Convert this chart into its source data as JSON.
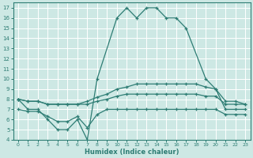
{
  "xlabel": "Humidex (Indice chaleur)",
  "bg_color": "#cde8e4",
  "grid_color": "#ffffff",
  "line_color": "#2e7d74",
  "xlim": [
    -0.5,
    23.5
  ],
  "ylim": [
    4,
    17.5
  ],
  "xticks": [
    0,
    1,
    2,
    3,
    4,
    5,
    6,
    7,
    8,
    9,
    10,
    11,
    12,
    13,
    14,
    15,
    16,
    17,
    18,
    19,
    20,
    21,
    22,
    23
  ],
  "yticks": [
    4,
    5,
    6,
    7,
    8,
    9,
    10,
    11,
    12,
    13,
    14,
    15,
    16,
    17
  ],
  "line1_x": [
    0,
    1,
    2,
    3,
    4,
    5,
    6,
    7,
    8,
    10,
    11,
    12,
    13,
    14,
    15,
    16,
    17,
    19,
    20,
    21,
    22,
    23
  ],
  "line1_y": [
    8,
    7,
    7,
    6,
    5,
    5,
    6,
    4,
    10,
    16,
    17,
    16,
    17,
    17,
    16,
    16,
    15,
    10,
    9,
    7,
    7,
    7
  ],
  "line2_x": [
    0,
    1,
    2,
    3,
    4,
    5,
    6,
    7,
    8,
    9,
    10,
    11,
    12,
    13,
    14,
    15,
    16,
    17,
    18,
    19,
    20,
    21,
    22,
    23
  ],
  "line2_y": [
    8,
    7.8,
    7.8,
    7.5,
    7.5,
    7.5,
    7.5,
    7.8,
    8.2,
    8.5,
    9.0,
    9.2,
    9.5,
    9.5,
    9.5,
    9.5,
    9.5,
    9.5,
    9.5,
    9.2,
    9.0,
    7.8,
    7.8,
    7.5
  ],
  "line3_x": [
    0,
    1,
    2,
    3,
    4,
    5,
    6,
    7,
    8,
    9,
    10,
    11,
    12,
    13,
    14,
    15,
    16,
    17,
    18,
    19,
    20,
    21,
    22,
    23
  ],
  "line3_y": [
    8,
    7.8,
    7.8,
    7.5,
    7.5,
    7.5,
    7.5,
    7.5,
    7.8,
    8.0,
    8.3,
    8.5,
    8.5,
    8.5,
    8.5,
    8.5,
    8.5,
    8.5,
    8.5,
    8.3,
    8.3,
    7.5,
    7.5,
    7.5
  ],
  "line4_x": [
    0,
    1,
    2,
    3,
    4,
    5,
    6,
    7,
    8,
    9,
    10,
    11,
    12,
    13,
    14,
    15,
    16,
    17,
    18,
    19,
    20,
    21,
    22,
    23
  ],
  "line4_y": [
    7,
    6.8,
    6.8,
    6.3,
    5.8,
    5.8,
    6.3,
    5.2,
    6.5,
    7.0,
    7.0,
    7.0,
    7.0,
    7.0,
    7.0,
    7.0,
    7.0,
    7.0,
    7.0,
    7.0,
    7.0,
    6.5,
    6.5,
    6.5
  ]
}
